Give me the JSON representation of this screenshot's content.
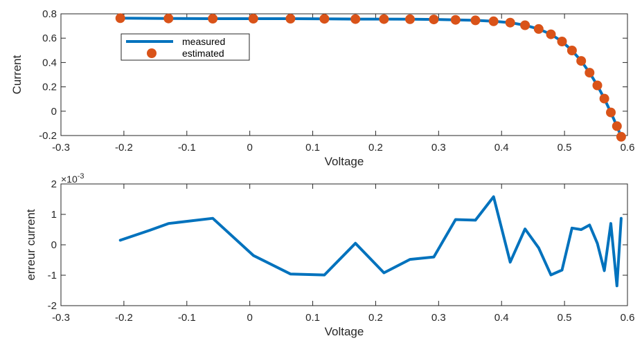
{
  "chart_data": [
    {
      "type": "line",
      "xlabel": "Voltage",
      "ylabel": "Current",
      "xlim": [
        -0.3,
        0.6
      ],
      "ylim": [
        -0.2,
        0.8
      ],
      "xticks": [
        "-0.3",
        "-0.2",
        "-0.1",
        "0",
        "0.1",
        "0.2",
        "0.3",
        "0.4",
        "0.5",
        "0.6"
      ],
      "yticks": [
        "-0.2",
        "0",
        "0.2",
        "0.4",
        "0.6",
        "0.8"
      ],
      "legend": {
        "placement": "top-left"
      },
      "series": [
        {
          "name": "measured",
          "style": "line",
          "color": "#0072BD",
          "x": [
            -0.2057,
            -0.1291,
            -0.0588,
            0.0057,
            0.0646,
            0.1185,
            0.1678,
            0.2132,
            0.2545,
            0.2924,
            0.3269,
            0.3585,
            0.3873,
            0.4137,
            0.4373,
            0.459,
            0.4784,
            0.496,
            0.5119,
            0.5265,
            0.5398,
            0.5521,
            0.5633,
            0.5736,
            0.5833,
            0.59
          ],
          "y": [
            0.764,
            0.762,
            0.7605,
            0.7605,
            0.76,
            0.759,
            0.757,
            0.757,
            0.7555,
            0.754,
            0.7505,
            0.7465,
            0.7385,
            0.728,
            0.7065,
            0.6755,
            0.632,
            0.573,
            0.499,
            0.413,
            0.3165,
            0.212,
            0.1035,
            -0.01,
            -0.123,
            -0.21
          ]
        },
        {
          "name": "estimated",
          "style": "markers",
          "color": "#D95319",
          "x": [
            -0.2057,
            -0.1291,
            -0.0588,
            0.0057,
            0.0646,
            0.1185,
            0.1678,
            0.2132,
            0.2545,
            0.2924,
            0.3269,
            0.3585,
            0.3873,
            0.4137,
            0.4373,
            0.459,
            0.4784,
            0.496,
            0.5119,
            0.5265,
            0.5398,
            0.5521,
            0.5633,
            0.5736,
            0.5833,
            0.59
          ],
          "y": [
            0.764,
            0.762,
            0.7605,
            0.7605,
            0.76,
            0.759,
            0.757,
            0.757,
            0.7555,
            0.754,
            0.7505,
            0.7465,
            0.7385,
            0.728,
            0.7065,
            0.6755,
            0.632,
            0.573,
            0.499,
            0.413,
            0.3165,
            0.212,
            0.1035,
            -0.01,
            -0.123,
            -0.21
          ]
        }
      ]
    },
    {
      "type": "line",
      "xlabel": "Voltage",
      "ylabel": "erreur current",
      "exponent_label": "×10",
      "exponent_power": "-3",
      "xlim": [
        -0.3,
        0.6
      ],
      "ylim": [
        -2,
        2
      ],
      "xticks": [
        "-0.3",
        "-0.2",
        "-0.1",
        "0",
        "0.1",
        "0.2",
        "0.3",
        "0.4",
        "0.5",
        "0.6"
      ],
      "yticks": [
        "-2",
        "-1",
        "0",
        "1",
        "2"
      ],
      "series": [
        {
          "style": "line",
          "color": "#0072BD",
          "x": [
            -0.2057,
            -0.1585,
            -0.1291,
            -0.0588,
            0.0057,
            0.0646,
            0.1185,
            0.1678,
            0.2132,
            0.2545,
            0.2924,
            0.3269,
            0.3585,
            0.3873,
            0.4137,
            0.4373,
            0.459,
            0.4784,
            0.496,
            0.5119,
            0.5265,
            0.5398,
            0.5521,
            0.5633,
            0.5736,
            0.5833,
            0.59
          ],
          "y": [
            0.15,
            0.48,
            0.7,
            0.87,
            -0.35,
            -0.96,
            -0.99,
            0.05,
            -0.92,
            -0.48,
            -0.4,
            0.83,
            0.81,
            1.58,
            -0.57,
            0.52,
            -0.1,
            -0.99,
            -0.83,
            0.55,
            0.5,
            0.65,
            0.05,
            -0.85,
            0.7,
            -1.35,
            0.87
          ]
        }
      ]
    }
  ]
}
